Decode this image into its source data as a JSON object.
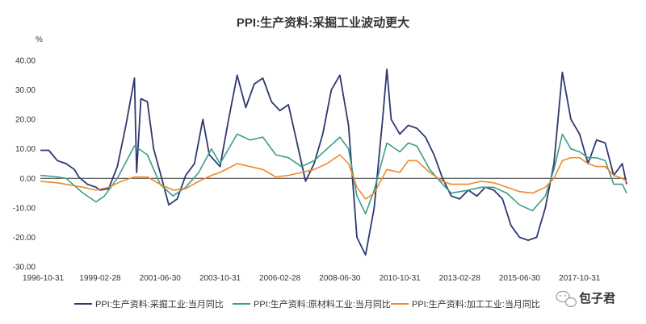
{
  "chart_data": {
    "type": "line",
    "title": "PPI:生产资料:采掘工业波动更大",
    "ylabel": "%",
    "xlabel": "",
    "ylim": [
      -30,
      40
    ],
    "yticks": [
      -30,
      -20,
      -10,
      0,
      10,
      20,
      30,
      40
    ],
    "ytick_labels": [
      "-30.00",
      "-20.00",
      "-10.00",
      "0.00",
      "10.00",
      "20.00",
      "30.00",
      "40.00"
    ],
    "x_range": [
      "1996-10-31",
      "2019-08-31"
    ],
    "xtick_labels": [
      "1996-10-31",
      "1999-02-28",
      "2001-06-30",
      "2003-10-31",
      "2006-02-28",
      "2008-06-30",
      "2010-10-31",
      "2013-02-28",
      "2015-06-30",
      "2017-10-31"
    ],
    "grid": false,
    "legend_position": "bottom",
    "series": [
      {
        "name": "PPI:生产资料:采掘工业:当月同比",
        "color": "#2e3870",
        "points": [
          [
            "1996-10-31",
            9.5
          ],
          [
            "1997-02-28",
            9.5
          ],
          [
            "1997-06-30",
            6.0
          ],
          [
            "1997-10-31",
            5.0
          ],
          [
            "1998-02-28",
            3.0
          ],
          [
            "1998-04-30",
            0.5
          ],
          [
            "1998-08-31",
            -2.0
          ],
          [
            "1998-12-31",
            -3.0
          ],
          [
            "1999-02-28",
            -4.0
          ],
          [
            "1999-06-30",
            -3.5
          ],
          [
            "1999-10-31",
            4.0
          ],
          [
            "2000-02-29",
            18.0
          ],
          [
            "2000-05-31",
            30.0
          ],
          [
            "2000-06-30",
            34.0
          ],
          [
            "2000-07-31",
            2.0
          ],
          [
            "2000-09-30",
            27.0
          ],
          [
            "2000-12-31",
            26.0
          ],
          [
            "2001-03-31",
            10.0
          ],
          [
            "2001-06-30",
            2.0
          ],
          [
            "2001-10-31",
            -9.0
          ],
          [
            "2002-02-28",
            -7.0
          ],
          [
            "2002-06-30",
            1.0
          ],
          [
            "2002-10-31",
            5.0
          ],
          [
            "2003-02-28",
            20.0
          ],
          [
            "2003-05-31",
            8.0
          ],
          [
            "2003-10-31",
            4.0
          ],
          [
            "2004-02-29",
            20.0
          ],
          [
            "2004-06-30",
            35.0
          ],
          [
            "2004-10-31",
            24.0
          ],
          [
            "2005-02-28",
            32.0
          ],
          [
            "2005-06-30",
            34.0
          ],
          [
            "2005-10-31",
            26.0
          ],
          [
            "2006-02-28",
            23.0
          ],
          [
            "2006-06-30",
            25.0
          ],
          [
            "2006-10-31",
            12.0
          ],
          [
            "2007-02-28",
            -1.0
          ],
          [
            "2007-06-30",
            5.0
          ],
          [
            "2007-10-31",
            15.0
          ],
          [
            "2008-02-29",
            30.0
          ],
          [
            "2008-06-30",
            35.0
          ],
          [
            "2008-10-31",
            18.0
          ],
          [
            "2009-02-28",
            -20.0
          ],
          [
            "2009-06-30",
            -26.0
          ],
          [
            "2009-10-31",
            -10.0
          ],
          [
            "2010-02-28",
            20.0
          ],
          [
            "2010-04-30",
            37.0
          ],
          [
            "2010-06-30",
            20.0
          ],
          [
            "2010-10-31",
            15.0
          ],
          [
            "2011-02-28",
            18.0
          ],
          [
            "2011-06-30",
            17.0
          ],
          [
            "2011-10-31",
            14.0
          ],
          [
            "2012-02-29",
            8.0
          ],
          [
            "2012-06-30",
            0.0
          ],
          [
            "2012-10-31",
            -6.0
          ],
          [
            "2013-02-28",
            -7.0
          ],
          [
            "2013-06-30",
            -4.0
          ],
          [
            "2013-10-31",
            -6.0
          ],
          [
            "2014-02-28",
            -3.0
          ],
          [
            "2014-06-30",
            -4.0
          ],
          [
            "2014-10-31",
            -7.0
          ],
          [
            "2015-02-28",
            -16.0
          ],
          [
            "2015-06-30",
            -20.0
          ],
          [
            "2015-10-31",
            -21.0
          ],
          [
            "2016-02-29",
            -20.0
          ],
          [
            "2016-06-30",
            -10.0
          ],
          [
            "2016-10-31",
            5.0
          ],
          [
            "2017-02-28",
            36.0
          ],
          [
            "2017-06-30",
            20.0
          ],
          [
            "2017-10-31",
            15.0
          ],
          [
            "2018-02-28",
            5.0
          ],
          [
            "2018-06-30",
            13.0
          ],
          [
            "2018-10-31",
            12.0
          ],
          [
            "2019-02-28",
            1.0
          ],
          [
            "2019-06-30",
            5.0
          ],
          [
            "2019-08-31",
            -2.0
          ]
        ]
      },
      {
        "name": "PPI:生产资料:原材料工业:当月同比",
        "color": "#3a9e88",
        "points": [
          [
            "1996-10-31",
            1.0
          ],
          [
            "1997-06-30",
            0.5
          ],
          [
            "1997-10-31",
            0.0
          ],
          [
            "1998-06-30",
            -5.0
          ],
          [
            "1998-12-31",
            -8.0
          ],
          [
            "1999-04-30",
            -6.0
          ],
          [
            "1999-10-31",
            0.0
          ],
          [
            "2000-06-30",
            11.0
          ],
          [
            "2000-12-31",
            8.0
          ],
          [
            "2001-06-30",
            -2.0
          ],
          [
            "2001-12-31",
            -6.0
          ],
          [
            "2002-06-30",
            -3.0
          ],
          [
            "2002-12-31",
            2.0
          ],
          [
            "2003-06-30",
            10.0
          ],
          [
            "2003-10-31",
            5.0
          ],
          [
            "2004-06-30",
            15.0
          ],
          [
            "2004-12-31",
            13.0
          ],
          [
            "2005-06-30",
            14.0
          ],
          [
            "2005-12-31",
            8.0
          ],
          [
            "2006-06-30",
            7.0
          ],
          [
            "2006-12-31",
            4.0
          ],
          [
            "2007-06-30",
            6.0
          ],
          [
            "2007-12-31",
            10.0
          ],
          [
            "2008-06-30",
            14.0
          ],
          [
            "2008-10-31",
            10.0
          ],
          [
            "2009-02-28",
            -6.0
          ],
          [
            "2009-06-30",
            -12.0
          ],
          [
            "2009-10-31",
            -4.0
          ],
          [
            "2010-04-30",
            12.0
          ],
          [
            "2010-10-31",
            9.0
          ],
          [
            "2011-02-28",
            12.0
          ],
          [
            "2011-06-30",
            11.0
          ],
          [
            "2011-12-31",
            3.0
          ],
          [
            "2012-06-30",
            -2.0
          ],
          [
            "2012-10-31",
            -5.0
          ],
          [
            "2013-06-30",
            -4.0
          ],
          [
            "2013-12-31",
            -3.0
          ],
          [
            "2014-06-30",
            -3.0
          ],
          [
            "2014-12-31",
            -5.0
          ],
          [
            "2015-06-30",
            -9.0
          ],
          [
            "2015-12-31",
            -11.0
          ],
          [
            "2016-06-30",
            -6.0
          ],
          [
            "2016-10-31",
            3.0
          ],
          [
            "2017-02-28",
            15.0
          ],
          [
            "2017-06-30",
            10.0
          ],
          [
            "2017-10-31",
            9.0
          ],
          [
            "2018-02-28",
            7.0
          ],
          [
            "2018-06-30",
            7.0
          ],
          [
            "2018-10-31",
            6.0
          ],
          [
            "2019-02-28",
            -2.0
          ],
          [
            "2019-06-30",
            -2.0
          ],
          [
            "2019-08-31",
            -5.0
          ]
        ]
      },
      {
        "name": "PPI:生产资料:加工工业:当月同比",
        "color": "#f0882a",
        "points": [
          [
            "1996-10-31",
            -1.0
          ],
          [
            "1997-06-30",
            -1.5
          ],
          [
            "1998-06-30",
            -3.0
          ],
          [
            "1998-12-31",
            -4.0
          ],
          [
            "1999-06-30",
            -3.0
          ],
          [
            "1999-12-31",
            -1.0
          ],
          [
            "2000-06-30",
            0.5
          ],
          [
            "2000-12-31",
            0.5
          ],
          [
            "2001-06-30",
            -2.0
          ],
          [
            "2001-12-31",
            -4.0
          ],
          [
            "2002-06-30",
            -3.5
          ],
          [
            "2002-12-31",
            -1.0
          ],
          [
            "2003-06-30",
            1.0
          ],
          [
            "2003-10-31",
            2.0
          ],
          [
            "2004-06-30",
            5.0
          ],
          [
            "2004-12-31",
            4.0
          ],
          [
            "2005-06-30",
            3.0
          ],
          [
            "2005-12-31",
            0.5
          ],
          [
            "2006-06-30",
            1.0
          ],
          [
            "2006-12-31",
            2.0
          ],
          [
            "2007-06-30",
            3.0
          ],
          [
            "2007-12-31",
            5.0
          ],
          [
            "2008-06-30",
            8.0
          ],
          [
            "2008-10-31",
            5.0
          ],
          [
            "2009-02-28",
            -3.0
          ],
          [
            "2009-06-30",
            -7.0
          ],
          [
            "2009-10-31",
            -5.0
          ],
          [
            "2010-04-30",
            3.0
          ],
          [
            "2010-10-31",
            2.0
          ],
          [
            "2011-02-28",
            6.0
          ],
          [
            "2011-06-30",
            6.0
          ],
          [
            "2011-12-31",
            2.0
          ],
          [
            "2012-06-30",
            -1.0
          ],
          [
            "2012-10-31",
            -2.0
          ],
          [
            "2013-06-30",
            -2.0
          ],
          [
            "2013-12-31",
            -1.0
          ],
          [
            "2014-06-30",
            -1.5
          ],
          [
            "2014-12-31",
            -3.0
          ],
          [
            "2015-06-30",
            -4.5
          ],
          [
            "2015-12-31",
            -5.0
          ],
          [
            "2016-06-30",
            -3.0
          ],
          [
            "2016-10-31",
            0.0
          ],
          [
            "2017-02-28",
            6.0
          ],
          [
            "2017-06-30",
            7.0
          ],
          [
            "2017-10-31",
            7.0
          ],
          [
            "2018-02-28",
            5.0
          ],
          [
            "2018-06-30",
            4.0
          ],
          [
            "2018-10-31",
            4.0
          ],
          [
            "2019-02-28",
            1.0
          ],
          [
            "2019-06-30",
            0.0
          ],
          [
            "2019-08-31",
            -1.0
          ]
        ]
      }
    ]
  },
  "watermark": {
    "text": "包子君",
    "icon": "wechat-icon"
  }
}
